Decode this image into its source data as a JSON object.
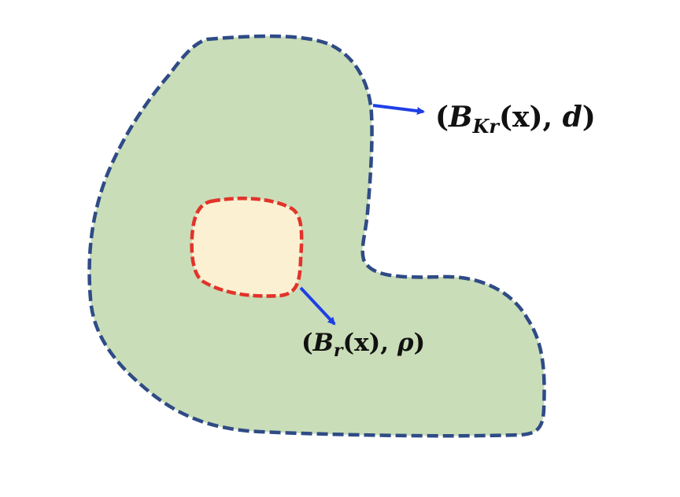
{
  "diagram": {
    "outer_region": {
      "fill_color": "#c9ddb8",
      "border_color": "#2f4b86",
      "label": {
        "open_paren": "(",
        "symbol": "B",
        "subscript": "Kr",
        "arg": "(x)",
        "comma": ", ",
        "metric": "d",
        "close_paren": ")"
      }
    },
    "inner_region": {
      "fill_color": "#fbf0d2",
      "border_color": "#e2332a",
      "label": {
        "open_paren": "(",
        "symbol": "B",
        "subscript": "r",
        "arg": "(x)",
        "comma": ", ",
        "metric": "ρ",
        "close_paren": ")"
      }
    },
    "arrow_color": "#1f3fe6"
  }
}
